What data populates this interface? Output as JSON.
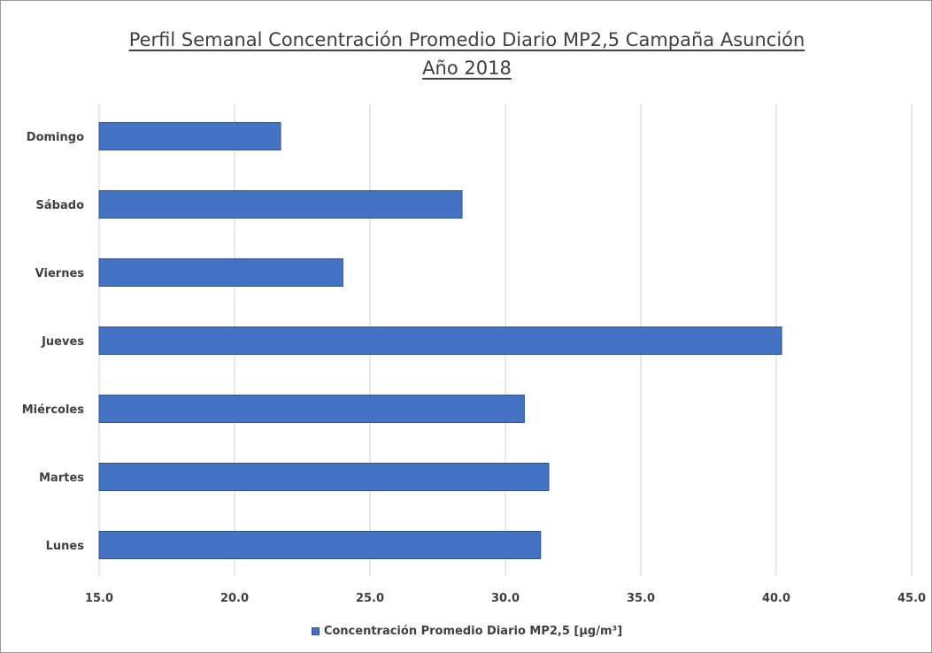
{
  "colors": {
    "bar_fill": "#4472c4",
    "bar_stroke": "#2f528f",
    "gridline": "#d0d0d0",
    "text": "#404040"
  },
  "chart_data": {
    "type": "bar",
    "orientation": "horizontal",
    "title": "Perfil Semanal Concentración Promedio Diario MP2,5 Campaña Asunción",
    "subtitle": "Año 2018",
    "categories": [
      "Lunes",
      "Martes",
      "Miércoles",
      "Jueves",
      "Viernes",
      "Sábado",
      "Domingo"
    ],
    "series": [
      {
        "name": "Concentración Promedio Diario MP2,5 [µg/m³]",
        "values": [
          31.3,
          31.6,
          30.7,
          40.2,
          24.0,
          28.4,
          21.7
        ]
      }
    ],
    "xlim": [
      15.0,
      45.0
    ],
    "ticks": [
      "15.0",
      "20.0",
      "25.0",
      "30.0",
      "35.0",
      "40.0",
      "45.0"
    ],
    "grid": true,
    "legend_position": "bottom"
  }
}
